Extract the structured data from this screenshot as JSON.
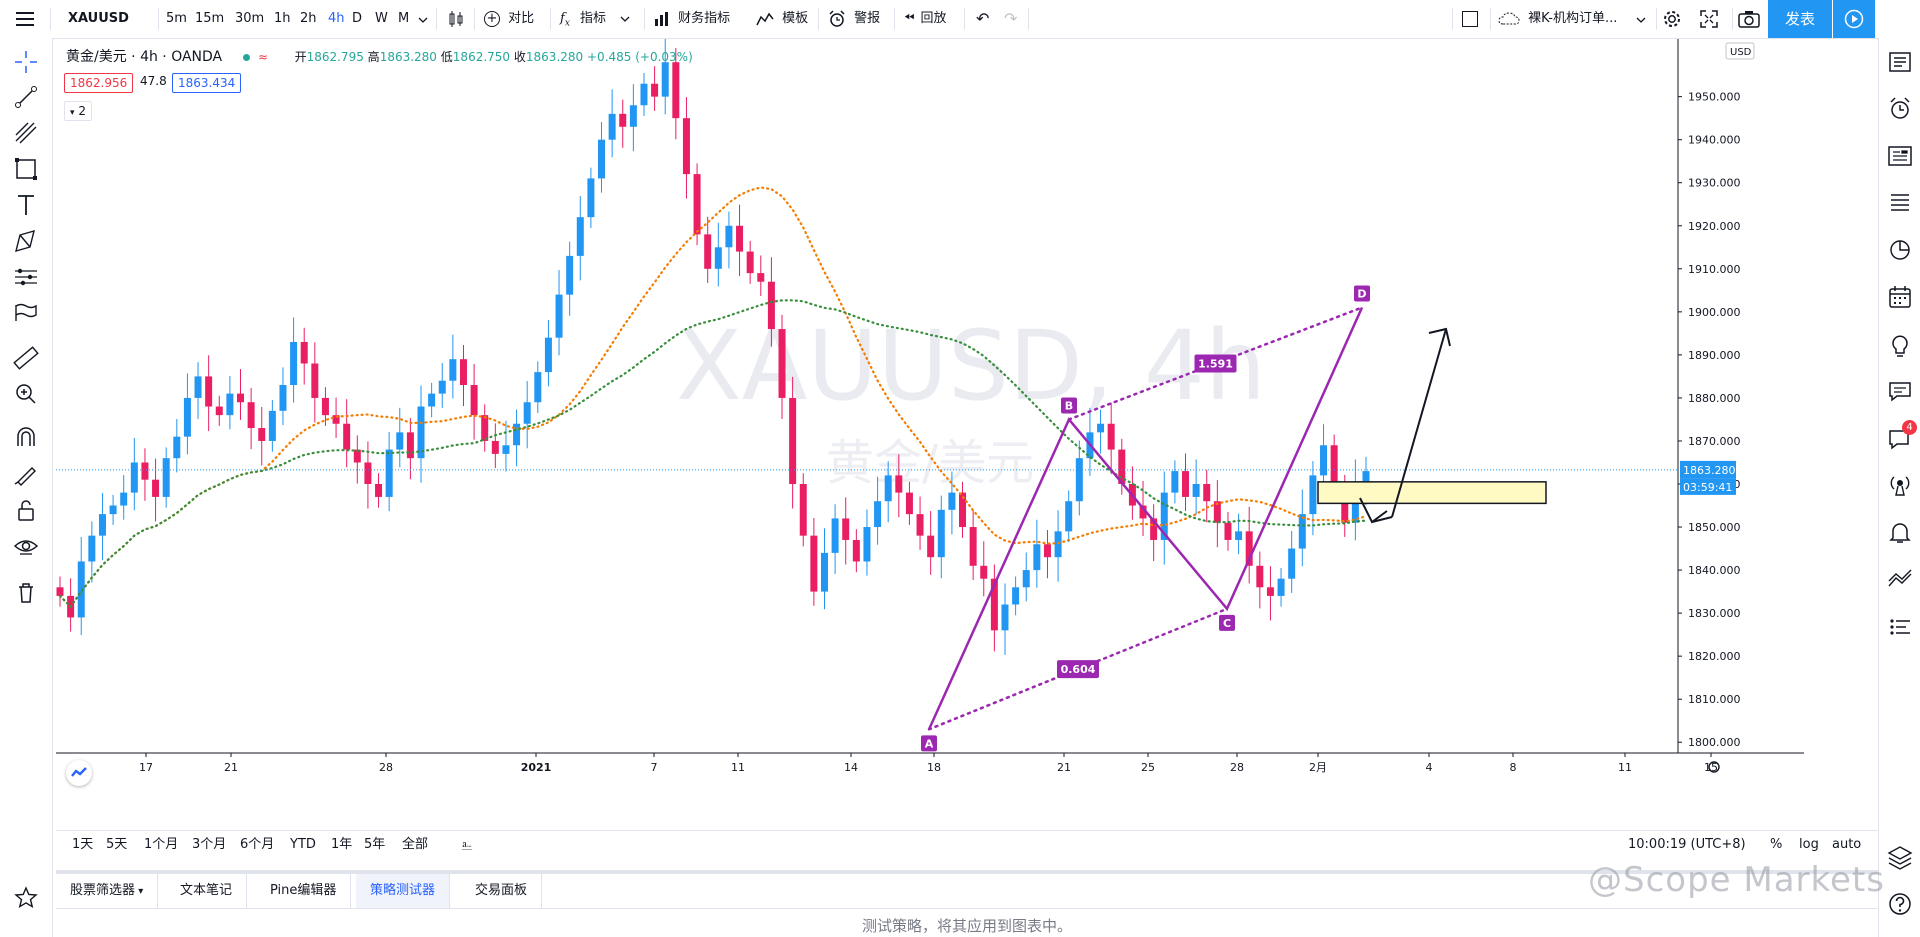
{
  "toolbar": {
    "symbol": "XAUUSD",
    "timeframes": [
      "5m",
      "15m",
      "30m",
      "1h",
      "2h",
      "4h",
      "D",
      "W",
      "M"
    ],
    "active_timeframe": "4h",
    "compare": "对比",
    "indicators": "指标",
    "financials": "财务指标",
    "templates": "模板",
    "alert": "警报",
    "replay": "回放",
    "layout_name": "裸K-机构订单...",
    "publish": "发表"
  },
  "legend": {
    "title": "黄金/美元 · 4h · OANDA",
    "open_label": "开",
    "open": "1862.795",
    "high_label": "高",
    "high": "1863.280",
    "low_label": "低",
    "low": "1862.750",
    "close_label": "收",
    "close": "1863.280",
    "change": "+0.485 (+0.03%)",
    "bid": "1862.956",
    "spread": "47.8",
    "ask": "1863.434",
    "collapsed_count": "2"
  },
  "chart_watermark": {
    "symbol": "XAUUSD, 4h",
    "name": "黄金/美元"
  },
  "chart_data": {
    "type": "line",
    "symbol": "XAUUSD",
    "interval": "4h",
    "currency": "USD",
    "y_ticks": [
      "1950.000",
      "1940.000",
      "1930.000",
      "1920.000",
      "1910.000",
      "1900.000",
      "1890.000",
      "1880.000",
      "1870.000",
      "1860.000",
      "1850.000",
      "1840.000",
      "1830.000",
      "1820.000",
      "1810.000",
      "1800.000"
    ],
    "ylim": [
      1797.5,
      1962
    ],
    "x_ticks": [
      "17",
      "21",
      "28",
      "2021",
      "7",
      "11",
      "14",
      "18",
      "21",
      "25",
      "28",
      "2月",
      "4",
      "8",
      "11",
      "15"
    ],
    "last_price": "1863.280",
    "countdown": "03:59:41",
    "pattern": {
      "points": [
        {
          "label": "A",
          "y": 1803
        },
        {
          "label": "B",
          "y": 1875
        },
        {
          "label": "C",
          "y": 1831
        },
        {
          "label": "D",
          "y": 1901
        }
      ],
      "ratios": [
        "0.604",
        "1.591"
      ]
    },
    "close_series": [
      1834,
      1829,
      1842,
      1848,
      1853,
      1855,
      1858,
      1865,
      1861,
      1857,
      1866,
      1871,
      1880,
      1885,
      1878,
      1876,
      1881,
      1879,
      1873,
      1870,
      1877,
      1883,
      1893,
      1888,
      1880,
      1876,
      1874,
      1868,
      1865,
      1860,
      1857,
      1868,
      1872,
      1866,
      1878,
      1881,
      1884,
      1889,
      1883,
      1876,
      1870,
      1867,
      1869,
      1874,
      1879,
      1886,
      1894,
      1904,
      1913,
      1922,
      1931,
      1940,
      1946,
      1943,
      1948,
      1953,
      1950,
      1958,
      1945,
      1932,
      1918,
      1910,
      1915,
      1920,
      1914,
      1909,
      1907,
      1896,
      1880,
      1860,
      1848,
      1835,
      1844,
      1852,
      1847,
      1842,
      1850,
      1856,
      1862,
      1858,
      1853,
      1848,
      1843,
      1854,
      1858,
      1850,
      1841,
      1838,
      1826,
      1832,
      1836,
      1840,
      1846,
      1843,
      1849,
      1856,
      1866,
      1872,
      1874,
      1868,
      1860,
      1855,
      1852,
      1847,
      1858,
      1863,
      1857,
      1860,
      1856,
      1851,
      1847,
      1849,
      1841,
      1836,
      1834,
      1838,
      1845,
      1853,
      1862,
      1869,
      1858,
      1851,
      1860,
      1863
    ]
  },
  "bottom": {
    "ranges": [
      "1天",
      "5天",
      "1个月",
      "3个月",
      "6个月",
      "YTD",
      "1年",
      "5年",
      "全部"
    ],
    "clock": "10:00:19 (UTC+8)",
    "percent": "%",
    "log": "log",
    "auto": "auto"
  },
  "tabs": [
    "股票筛选器",
    "文本笔记",
    "Pine编辑器",
    "策略测试器",
    "交易面板"
  ],
  "active_tab": "策略测试器",
  "status_message": "测试策略，将其应用到图表中。",
  "notification_count": "4",
  "corner_watermark": "@Scope Markets"
}
